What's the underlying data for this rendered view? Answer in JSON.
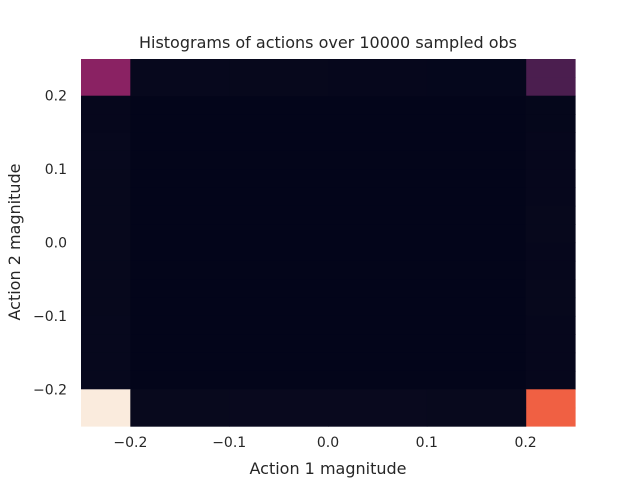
{
  "chart_data": {
    "type": "heatmap",
    "title": "Histograms of actions over 10000 sampled obs",
    "xlabel": "Action 1 magnitude",
    "ylabel": "Action 2 magnitude",
    "xlim": [
      -0.25,
      0.25
    ],
    "ylim": [
      -0.25,
      0.25
    ],
    "x_ticks": [
      -0.2,
      -0.1,
      0.0,
      0.1,
      0.2
    ],
    "y_ticks": [
      -0.2,
      -0.1,
      0.0,
      0.1,
      0.2
    ],
    "x_tick_labels": [
      "−0.2",
      "−0.1",
      "0.0",
      "0.1",
      "0.2"
    ],
    "y_tick_labels": [
      "−0.2",
      "−0.1",
      "0.0",
      "0.1",
      "0.2"
    ],
    "x_bin_edges": [
      -0.25,
      -0.2,
      0.2,
      0.25
    ],
    "y_bin_edges": [
      -0.25,
      -0.225,
      -0.2,
      -0.175,
      -0.15,
      -0.125,
      -0.1,
      -0.075,
      -0.05,
      -0.025,
      0.0,
      0.025,
      0.05,
      0.075,
      0.1,
      0.125,
      0.15,
      0.175,
      0.2,
      0.225,
      0.25
    ],
    "interior_x_bands": 4,
    "values_top_to_bottom": [
      [
        0.5,
        0.02,
        0.25
      ],
      [
        0.5,
        0.02,
        0.25
      ],
      [
        0.04,
        0.0,
        0.03
      ],
      [
        0.04,
        0.0,
        0.03
      ],
      [
        0.06,
        0.0,
        0.04
      ],
      [
        0.06,
        0.0,
        0.04
      ],
      [
        0.05,
        0.0,
        0.04
      ],
      [
        0.05,
        0.0,
        0.04
      ],
      [
        0.05,
        0.0,
        0.05
      ],
      [
        0.05,
        0.0,
        0.05
      ],
      [
        0.05,
        0.0,
        0.04
      ],
      [
        0.05,
        0.0,
        0.04
      ],
      [
        0.05,
        0.0,
        0.05
      ],
      [
        0.05,
        0.0,
        0.05
      ],
      [
        0.06,
        0.0,
        0.04
      ],
      [
        0.06,
        0.0,
        0.04
      ],
      [
        0.06,
        0.0,
        0.04
      ],
      [
        0.06,
        0.0,
        0.04
      ],
      [
        1.0,
        0.05,
        0.75
      ],
      [
        1.0,
        0.05,
        0.75
      ]
    ],
    "colormap": "rocket",
    "colors": {
      "bg_min": "#03051a",
      "bottom_left": "#faebdd",
      "bottom_right": "#f06043",
      "top_left": "#8a2263",
      "top_right": "#4b1e4f",
      "band": "#0c0c20",
      "band_edge": "#0a0a1d"
    },
    "grid": false
  }
}
